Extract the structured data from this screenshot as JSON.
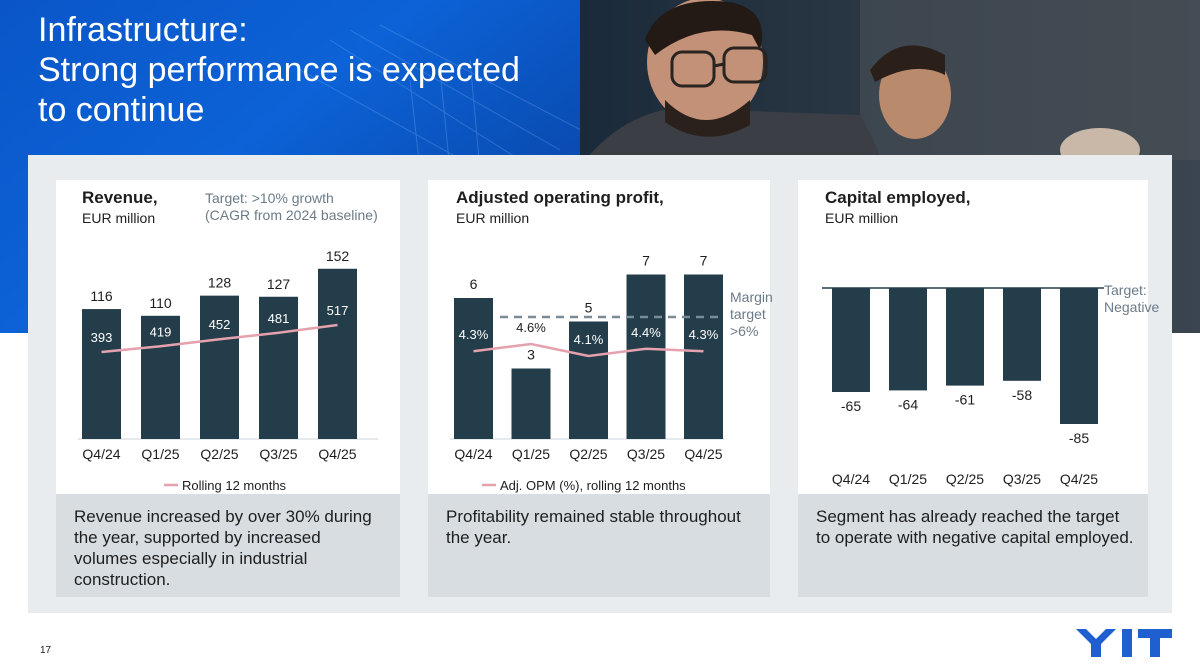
{
  "slide": {
    "title_lines": [
      "Infrastructure:",
      "Strong performance is expected",
      "to continue"
    ],
    "page_number": "17",
    "brand": "YIT"
  },
  "panels": [
    {
      "title": "Revenue,",
      "subtitle": "EUR million",
      "target_lines": [
        "Target: >10% growth",
        "(CAGR from 2024 baseline)"
      ],
      "note": "Revenue increased by over 30% during the year, supported by increased volumes especially in industrial construction.",
      "legend": "Rolling 12 months"
    },
    {
      "title": "Adjusted operating profit,",
      "subtitle": "EUR million",
      "target_lines": [
        "Margin",
        "target",
        ">6%"
      ],
      "note": "Profitability remained stable throughout the year.",
      "legend": "Adj. OPM (%), rolling 12 months"
    },
    {
      "title": "Capital employed,",
      "subtitle": "EUR million",
      "target_lines": [
        "Target:",
        "Negative"
      ],
      "note": "Segment has already reached the target to operate with negative capital employed.",
      "legend": ""
    }
  ],
  "colors": {
    "bar": "#233d4a",
    "line": "#e5a1ad",
    "band": "#e8ecef",
    "note": "#d8dde1",
    "target_text": "#6b7b88",
    "dashed": "#7b8c98"
  },
  "chart_data": [
    {
      "type": "bar",
      "categories": [
        "Q4/24",
        "Q1/25",
        "Q2/25",
        "Q3/25",
        "Q4/25"
      ],
      "series": [
        {
          "values": [
            116,
            110,
            128,
            127,
            152
          ]
        },
        {
          "name": "Rolling 12 months",
          "type": "line",
          "values": [
            393,
            419,
            452,
            481,
            517
          ]
        }
      ]
    },
    {
      "type": "bar",
      "categories": [
        "Q4/24",
        "Q1/25",
        "Q2/25",
        "Q3/25",
        "Q4/25"
      ],
      "series": [
        {
          "values": [
            6,
            3,
            5,
            7,
            7
          ]
        },
        {
          "name": "Adj. OPM (%), rolling 12 months",
          "type": "line",
          "values": [
            4.3,
            4.6,
            4.1,
            4.4,
            4.3
          ],
          "labels": [
            "4.3%",
            "4.6%",
            "4.1%",
            "4.4%",
            "4.3%"
          ]
        }
      ],
      "reference_line": {
        "style": "dashed",
        "value_pct": 6
      }
    },
    {
      "type": "bar",
      "categories": [
        "Q4/24",
        "Q1/25",
        "Q2/25",
        "Q3/25",
        "Q4/25"
      ],
      "series": [
        {
          "values": [
            -65,
            -64,
            -61,
            -58,
            -85
          ]
        }
      ],
      "reference_line": {
        "style": "solid",
        "value": 0
      }
    }
  ]
}
